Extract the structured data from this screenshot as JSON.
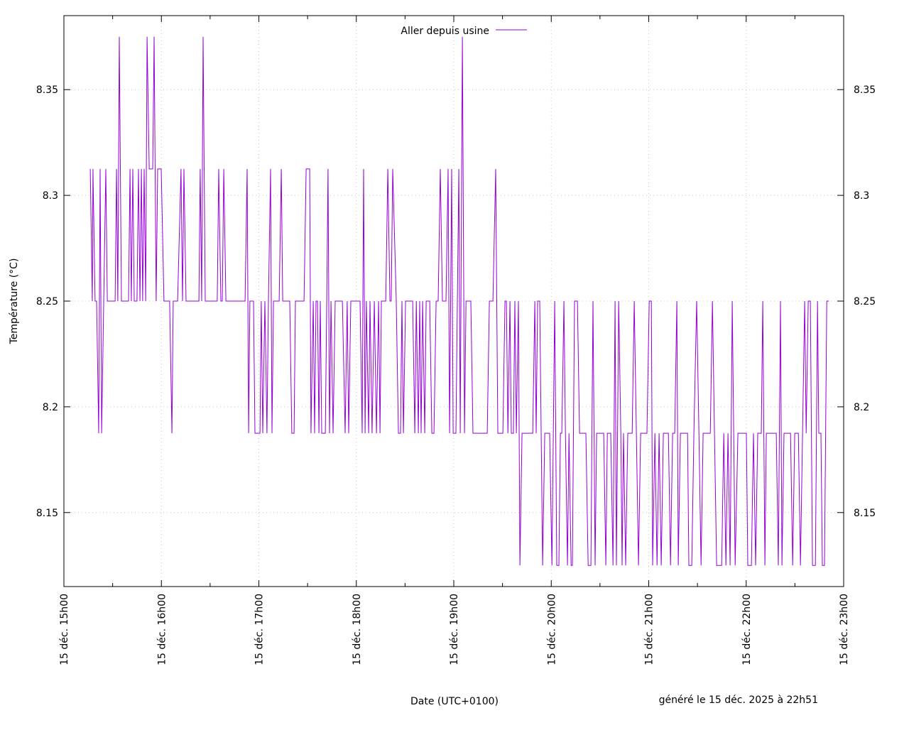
{
  "chart_data": {
    "type": "line",
    "title": "",
    "xlabel": "Date (UTC+0100)",
    "ylabel": "Température (°C)",
    "footer": "généré le 15 déc. 2025 à 22h51",
    "legend": {
      "position": "top-center",
      "entries": [
        "Aller depuis usine"
      ]
    },
    "series_color": "#9400d3",
    "grid": true,
    "x_unit": "minutes since 15 déc. 15h00",
    "xlim": [
      0,
      480
    ],
    "ylim": [
      8.115,
      8.385
    ],
    "x_ticks": [
      {
        "value": 0,
        "label": "15 déc. 15h00"
      },
      {
        "value": 60,
        "label": "15 déc. 16h00"
      },
      {
        "value": 120,
        "label": "15 déc. 17h00"
      },
      {
        "value": 180,
        "label": "15 déc. 18h00"
      },
      {
        "value": 240,
        "label": "15 déc. 19h00"
      },
      {
        "value": 300,
        "label": "15 déc. 20h00"
      },
      {
        "value": 360,
        "label": "15 déc. 21h00"
      },
      {
        "value": 420,
        "label": "15 déc. 22h00"
      },
      {
        "value": 480,
        "label": "15 déc. 23h00"
      }
    ],
    "y_ticks": [
      {
        "value": 8.15,
        "label": "8.15"
      },
      {
        "value": 8.2,
        "label": "8.2"
      },
      {
        "value": 8.25,
        "label": "8.25"
      },
      {
        "value": 8.3,
        "label": "8.3"
      },
      {
        "value": 8.35,
        "label": "8.35"
      }
    ],
    "series": [
      {
        "name": "Aller depuis usine",
        "points": [
          [
            16.2,
            8.3125
          ],
          [
            17.5,
            8.25
          ],
          [
            17.9,
            8.3125
          ],
          [
            19.2,
            8.25
          ],
          [
            20.1,
            8.25
          ],
          [
            21.4,
            8.1875
          ],
          [
            22.3,
            8.3125
          ],
          [
            23.2,
            8.1875
          ],
          [
            25.8,
            8.3125
          ],
          [
            26.7,
            8.25
          ],
          [
            31.5,
            8.25
          ],
          [
            32.4,
            8.3125
          ],
          [
            33.2,
            8.25
          ],
          [
            34.1,
            8.375
          ],
          [
            35.4,
            8.25
          ],
          [
            39.8,
            8.25
          ],
          [
            40.7,
            8.3125
          ],
          [
            41.5,
            8.25
          ],
          [
            42.4,
            8.3125
          ],
          [
            43.3,
            8.25
          ],
          [
            45.0,
            8.25
          ],
          [
            45.9,
            8.3125
          ],
          [
            46.8,
            8.25
          ],
          [
            47.7,
            8.3125
          ],
          [
            48.5,
            8.25
          ],
          [
            49.4,
            8.3125
          ],
          [
            50.3,
            8.25
          ],
          [
            51.2,
            8.375
          ],
          [
            52.5,
            8.3125
          ],
          [
            54.7,
            8.3125
          ],
          [
            55.5,
            8.375
          ],
          [
            56.8,
            8.25
          ],
          [
            57.7,
            8.3125
          ],
          [
            59.9,
            8.3125
          ],
          [
            61.6,
            8.25
          ],
          [
            65.1,
            8.25
          ],
          [
            66.5,
            8.1875
          ],
          [
            67.3,
            8.25
          ],
          [
            70.0,
            8.25
          ],
          [
            72.1,
            8.3125
          ],
          [
            73.0,
            8.25
          ],
          [
            73.9,
            8.3125
          ],
          [
            75.2,
            8.25
          ],
          [
            83.1,
            8.25
          ],
          [
            83.9,
            8.3125
          ],
          [
            84.8,
            8.25
          ],
          [
            85.7,
            8.375
          ],
          [
            87.0,
            8.25
          ],
          [
            94.4,
            8.25
          ],
          [
            95.3,
            8.3125
          ],
          [
            96.6,
            8.25
          ],
          [
            97.5,
            8.25
          ],
          [
            98.4,
            8.3125
          ],
          [
            99.7,
            8.25
          ],
          [
            111.5,
            8.25
          ],
          [
            112.8,
            8.3125
          ],
          [
            113.7,
            8.1875
          ],
          [
            114.5,
            8.25
          ],
          [
            116.7,
            8.25
          ],
          [
            117.6,
            8.1875
          ],
          [
            120.7,
            8.1875
          ],
          [
            121.5,
            8.25
          ],
          [
            122.4,
            8.1875
          ],
          [
            123.7,
            8.25
          ],
          [
            125.0,
            8.1875
          ],
          [
            125.9,
            8.25
          ],
          [
            127.2,
            8.3125
          ],
          [
            128.1,
            8.1875
          ],
          [
            129.0,
            8.25
          ],
          [
            129.8,
            8.25
          ],
          [
            132.5,
            8.25
          ],
          [
            133.8,
            8.3125
          ],
          [
            134.7,
            8.25
          ],
          [
            139.0,
            8.25
          ],
          [
            140.3,
            8.1875
          ],
          [
            141.7,
            8.1875
          ],
          [
            142.5,
            8.25
          ],
          [
            144.3,
            8.25
          ],
          [
            146.5,
            8.25
          ],
          [
            147.8,
            8.25
          ],
          [
            149.1,
            8.3125
          ],
          [
            151.3,
            8.3125
          ],
          [
            152.1,
            8.1875
          ],
          [
            153.5,
            8.25
          ],
          [
            154.3,
            8.1875
          ],
          [
            155.2,
            8.25
          ],
          [
            156.1,
            8.25
          ],
          [
            157.0,
            8.1875
          ],
          [
            157.8,
            8.25
          ],
          [
            158.7,
            8.1875
          ],
          [
            160.9,
            8.1875
          ],
          [
            161.8,
            8.25
          ],
          [
            162.6,
            8.3125
          ],
          [
            163.5,
            8.1875
          ],
          [
            164.4,
            8.25
          ],
          [
            165.7,
            8.1875
          ],
          [
            167.0,
            8.25
          ],
          [
            167.9,
            8.25
          ],
          [
            170.1,
            8.25
          ],
          [
            171.4,
            8.25
          ],
          [
            173.1,
            8.1875
          ],
          [
            174.4,
            8.25
          ],
          [
            175.3,
            8.1875
          ],
          [
            176.6,
            8.25
          ],
          [
            177.5,
            8.25
          ],
          [
            179.3,
            8.25
          ],
          [
            181.4,
            8.25
          ],
          [
            182.3,
            8.25
          ],
          [
            183.6,
            8.1875
          ],
          [
            184.5,
            8.3125
          ],
          [
            185.4,
            8.1875
          ],
          [
            186.2,
            8.25
          ],
          [
            187.6,
            8.1875
          ],
          [
            188.4,
            8.25
          ],
          [
            189.7,
            8.1875
          ],
          [
            191.1,
            8.25
          ],
          [
            192.4,
            8.1875
          ],
          [
            193.7,
            8.25
          ],
          [
            194.6,
            8.1875
          ],
          [
            195.4,
            8.25
          ],
          [
            196.7,
            8.25
          ],
          [
            198.1,
            8.25
          ],
          [
            199.4,
            8.3125
          ],
          [
            200.7,
            8.25
          ],
          [
            201.5,
            8.25
          ],
          [
            202.4,
            8.3125
          ],
          [
            204.6,
            8.25
          ],
          [
            205.9,
            8.1875
          ],
          [
            207.2,
            8.1875
          ],
          [
            208.1,
            8.25
          ],
          [
            209.0,
            8.1875
          ],
          [
            210.3,
            8.25
          ],
          [
            214.7,
            8.25
          ],
          [
            216.0,
            8.1875
          ],
          [
            216.9,
            8.25
          ],
          [
            218.2,
            8.1875
          ],
          [
            219.0,
            8.25
          ],
          [
            219.9,
            8.1875
          ],
          [
            220.8,
            8.25
          ],
          [
            222.1,
            8.1875
          ],
          [
            223.0,
            8.25
          ],
          [
            225.2,
            8.25
          ],
          [
            226.5,
            8.1875
          ],
          [
            227.8,
            8.1875
          ],
          [
            229.1,
            8.25
          ],
          [
            230.4,
            8.25
          ],
          [
            231.7,
            8.3125
          ],
          [
            233.0,
            8.25
          ],
          [
            235.2,
            8.25
          ],
          [
            236.5,
            8.3125
          ],
          [
            237.4,
            8.1875
          ],
          [
            238.7,
            8.3125
          ],
          [
            239.6,
            8.1875
          ],
          [
            241.3,
            8.1875
          ],
          [
            243.1,
            8.3125
          ],
          [
            244.0,
            8.1875
          ],
          [
            245.3,
            8.375
          ],
          [
            246.6,
            8.1875
          ],
          [
            247.5,
            8.25
          ],
          [
            250.5,
            8.25
          ],
          [
            251.8,
            8.1875
          ],
          [
            254.0,
            8.1875
          ],
          [
            260.6,
            8.1875
          ],
          [
            261.9,
            8.25
          ],
          [
            264.1,
            8.25
          ],
          [
            265.8,
            8.3125
          ],
          [
            267.1,
            8.1875
          ],
          [
            270.2,
            8.1875
          ],
          [
            271.5,
            8.25
          ],
          [
            272.4,
            8.25
          ],
          [
            273.3,
            8.1875
          ],
          [
            274.6,
            8.25
          ],
          [
            275.4,
            8.1875
          ],
          [
            276.7,
            8.1875
          ],
          [
            277.6,
            8.25
          ],
          [
            278.5,
            8.1875
          ],
          [
            279.8,
            8.25
          ],
          [
            280.7,
            8.125
          ],
          [
            282.0,
            8.1875
          ],
          [
            288.6,
            8.1875
          ],
          [
            289.9,
            8.25
          ],
          [
            290.7,
            8.1875
          ],
          [
            291.6,
            8.25
          ],
          [
            292.9,
            8.25
          ],
          [
            294.7,
            8.125
          ],
          [
            296.0,
            8.1875
          ],
          [
            299.0,
            8.1875
          ],
          [
            300.4,
            8.125
          ],
          [
            302.1,
            8.25
          ],
          [
            303.4,
            8.125
          ],
          [
            304.7,
            8.125
          ],
          [
            305.6,
            8.1875
          ],
          [
            306.5,
            8.1875
          ],
          [
            307.8,
            8.25
          ],
          [
            308.7,
            8.1875
          ],
          [
            310.0,
            8.125
          ],
          [
            310.9,
            8.1875
          ],
          [
            312.2,
            8.125
          ],
          [
            313.0,
            8.125
          ],
          [
            314.3,
            8.25
          ],
          [
            316.1,
            8.25
          ],
          [
            317.4,
            8.1875
          ],
          [
            321.3,
            8.1875
          ],
          [
            322.7,
            8.125
          ],
          [
            324.4,
            8.125
          ],
          [
            325.7,
            8.25
          ],
          [
            327.0,
            8.125
          ],
          [
            327.9,
            8.1875
          ],
          [
            332.3,
            8.1875
          ],
          [
            333.6,
            8.125
          ],
          [
            334.5,
            8.1875
          ],
          [
            336.6,
            8.1875
          ],
          [
            338.0,
            8.125
          ],
          [
            339.3,
            8.25
          ],
          [
            340.1,
            8.125
          ],
          [
            341.5,
            8.25
          ],
          [
            342.8,
            8.1875
          ],
          [
            343.6,
            8.125
          ],
          [
            344.5,
            8.1875
          ],
          [
            345.8,
            8.125
          ],
          [
            347.1,
            8.1875
          ],
          [
            349.8,
            8.1875
          ],
          [
            351.1,
            8.25
          ],
          [
            352.4,
            8.1875
          ],
          [
            353.7,
            8.125
          ],
          [
            355.0,
            8.1875
          ],
          [
            358.9,
            8.1875
          ],
          [
            360.3,
            8.25
          ],
          [
            361.6,
            8.25
          ],
          [
            362.4,
            8.125
          ],
          [
            363.8,
            8.1875
          ],
          [
            365.1,
            8.125
          ],
          [
            366.4,
            8.1875
          ],
          [
            367.7,
            8.125
          ],
          [
            369.0,
            8.1875
          ],
          [
            372.1,
            8.1875
          ],
          [
            373.4,
            8.125
          ],
          [
            374.7,
            8.1875
          ],
          [
            376.0,
            8.1875
          ],
          [
            377.3,
            8.25
          ],
          [
            378.2,
            8.125
          ],
          [
            379.5,
            8.1875
          ],
          [
            383.9,
            8.1875
          ],
          [
            384.7,
            8.125
          ],
          [
            386.5,
            8.125
          ],
          [
            387.8,
            8.1875
          ],
          [
            389.5,
            8.25
          ],
          [
            390.9,
            8.1875
          ],
          [
            392.2,
            8.125
          ],
          [
            393.5,
            8.1875
          ],
          [
            397.9,
            8.1875
          ],
          [
            399.2,
            8.25
          ],
          [
            400.5,
            8.1875
          ],
          [
            401.8,
            8.125
          ],
          [
            403.5,
            8.125
          ],
          [
            404.9,
            8.125
          ],
          [
            406.2,
            8.1875
          ],
          [
            407.5,
            8.125
          ],
          [
            408.8,
            8.1875
          ],
          [
            410.1,
            8.125
          ],
          [
            411.4,
            8.25
          ],
          [
            413.2,
            8.125
          ],
          [
            414.9,
            8.1875
          ],
          [
            420.1,
            8.1875
          ],
          [
            421.0,
            8.125
          ],
          [
            423.2,
            8.125
          ],
          [
            424.5,
            8.1875
          ],
          [
            425.8,
            8.125
          ],
          [
            427.1,
            8.1875
          ],
          [
            429.3,
            8.1875
          ],
          [
            430.2,
            8.25
          ],
          [
            431.5,
            8.125
          ],
          [
            432.4,
            8.1875
          ],
          [
            438.5,
            8.1875
          ],
          [
            439.8,
            8.125
          ],
          [
            441.1,
            8.25
          ],
          [
            442.0,
            8.125
          ],
          [
            443.3,
            8.1875
          ],
          [
            447.3,
            8.1875
          ],
          [
            448.6,
            8.125
          ],
          [
            449.9,
            8.1875
          ],
          [
            452.1,
            8.1875
          ],
          [
            453.4,
            8.125
          ],
          [
            454.7,
            8.1875
          ],
          [
            456.0,
            8.25
          ],
          [
            456.9,
            8.1875
          ],
          [
            458.2,
            8.25
          ],
          [
            459.5,
            8.25
          ],
          [
            460.8,
            8.125
          ],
          [
            462.6,
            8.125
          ],
          [
            463.9,
            8.25
          ],
          [
            464.7,
            8.1875
          ],
          [
            466.0,
            8.1875
          ],
          [
            466.9,
            8.125
          ],
          [
            468.2,
            8.125
          ],
          [
            469.6,
            8.25
          ],
          [
            470.9,
            8.25
          ]
        ]
      }
    ]
  }
}
